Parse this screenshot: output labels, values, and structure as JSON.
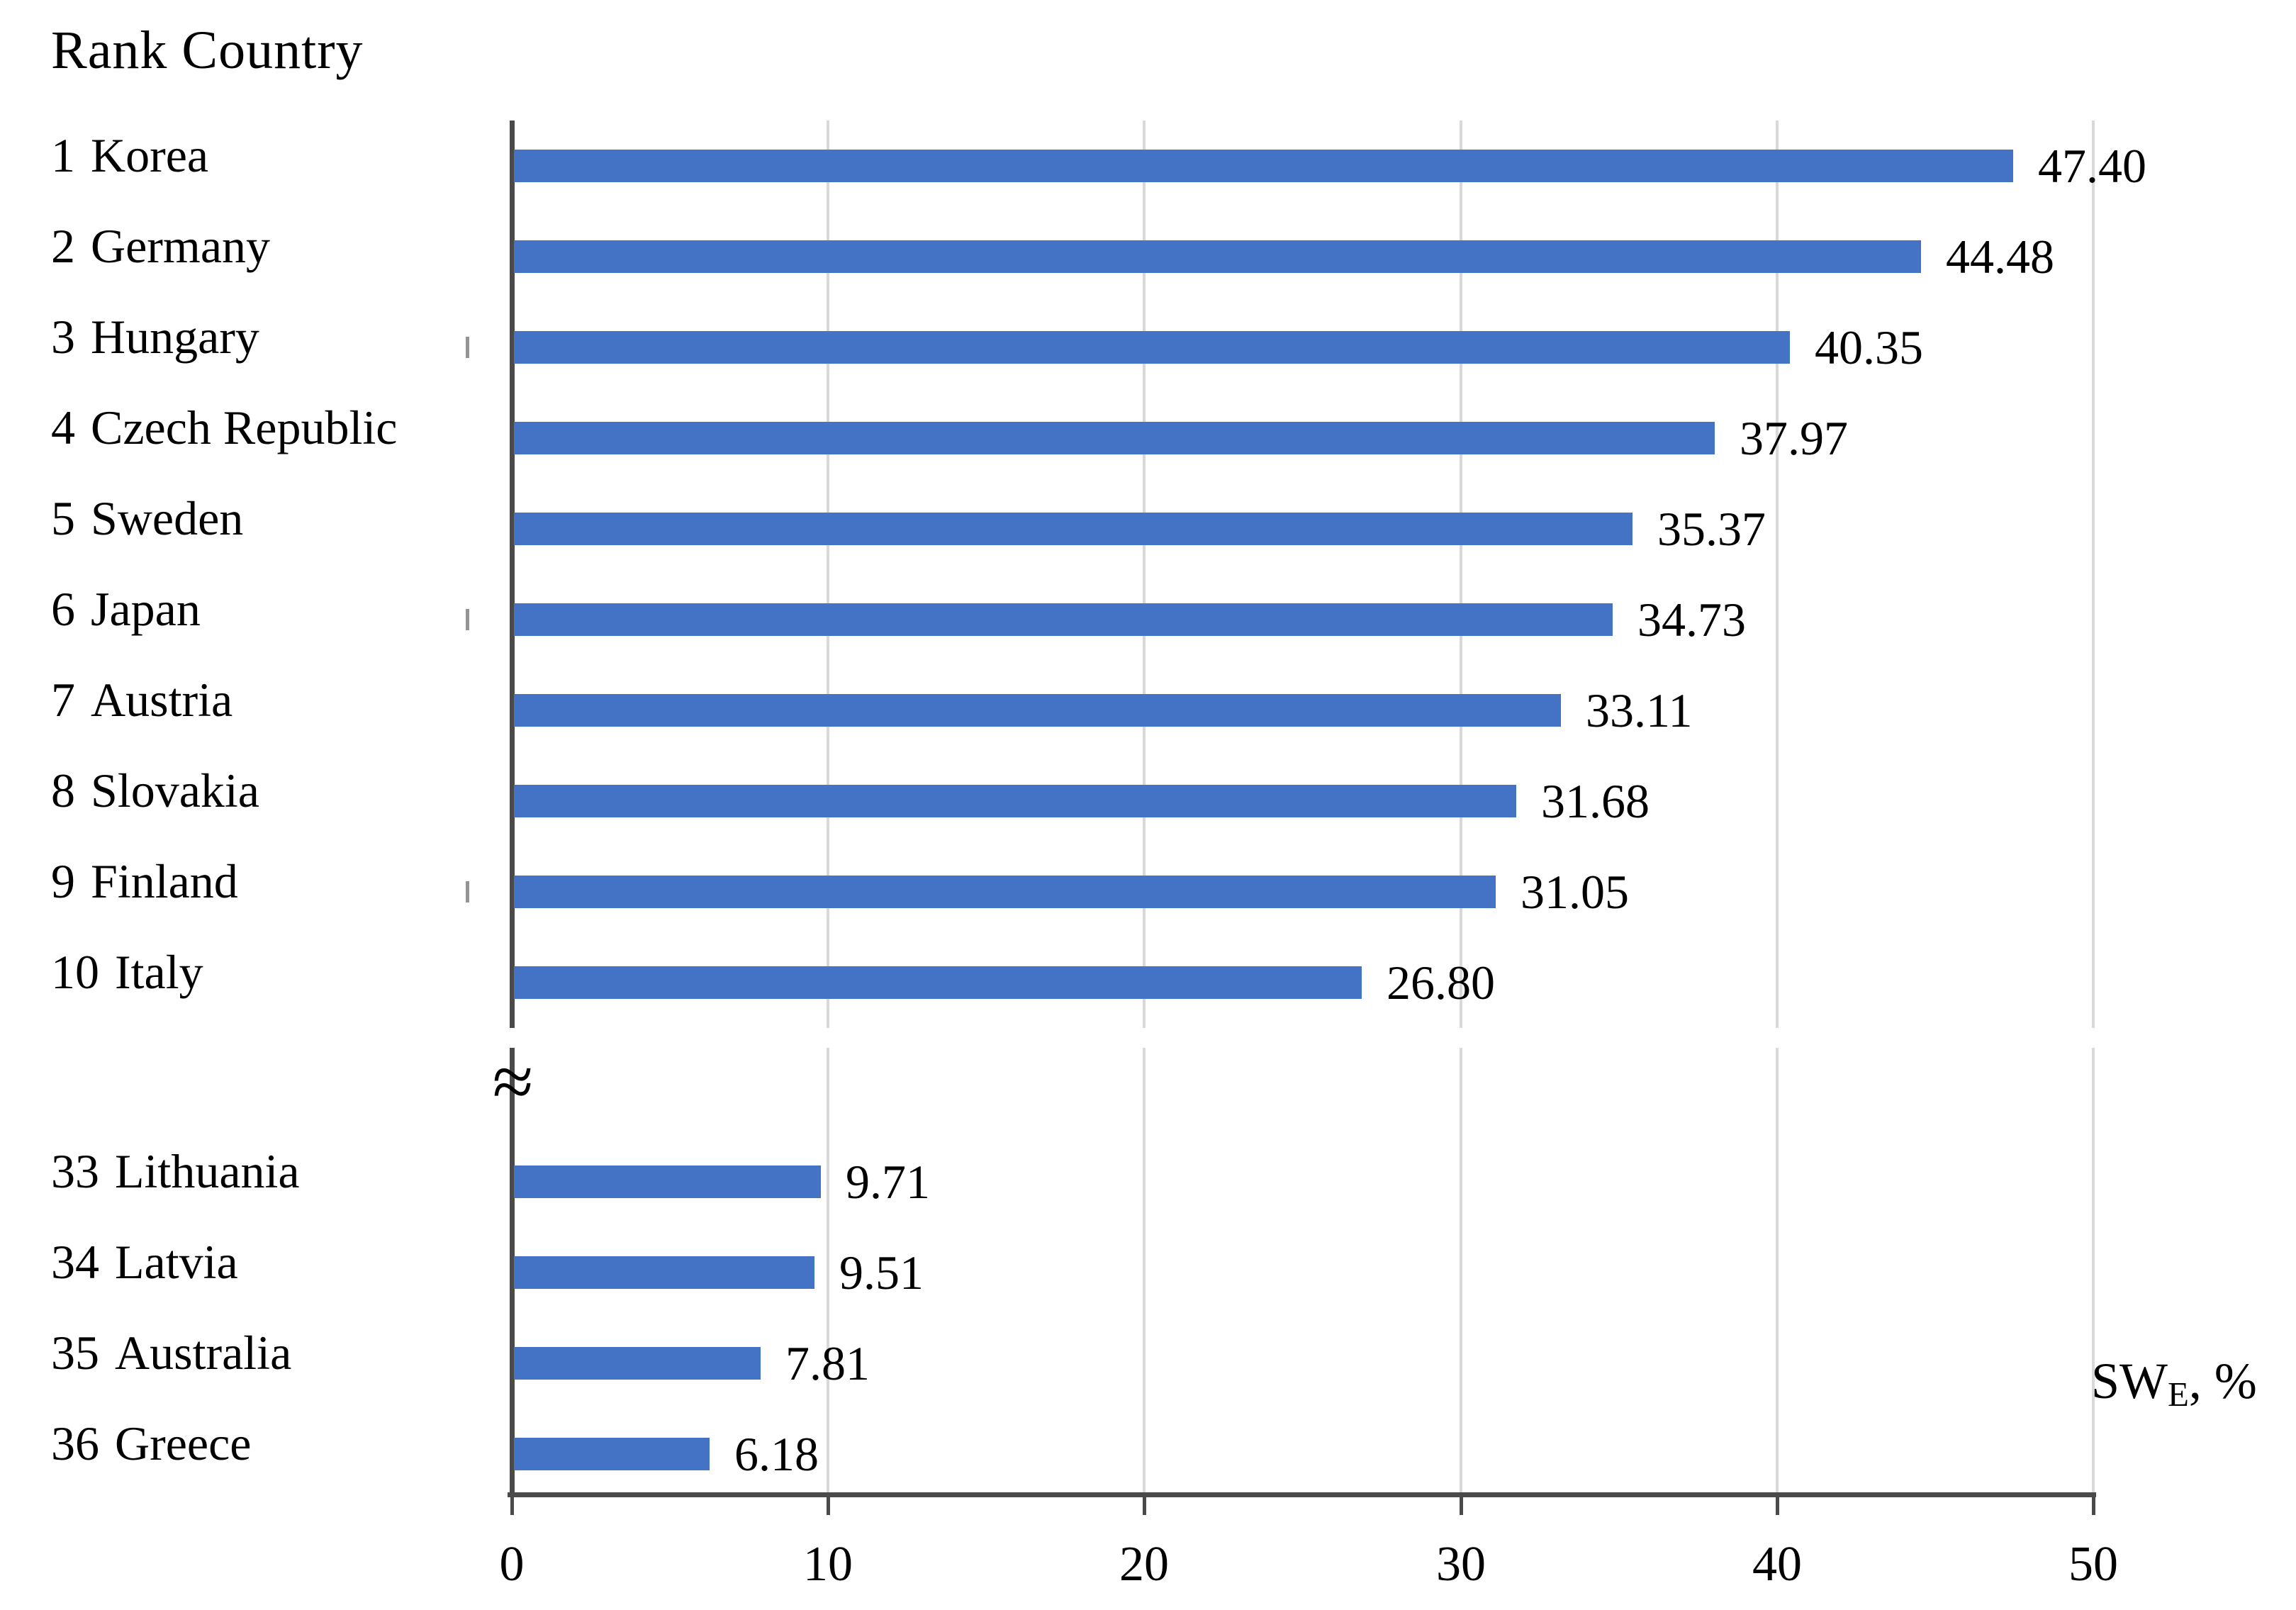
{
  "header": {
    "title": "Rank Country"
  },
  "axis": {
    "tick_labels": [
      "0",
      "10",
      "20",
      "30",
      "40",
      "50"
    ],
    "label_main": "SW",
    "label_sub": "E",
    "label_suffix": ", %",
    "break_symbol": "≈"
  },
  "colors": {
    "bar": "#4472c4",
    "axis_line": "#4a4a4a",
    "gridline": "#d9d9d9",
    "category_tick": "#949494",
    "text": "#000000"
  },
  "chart_data": {
    "type": "bar",
    "orientation": "horizontal",
    "title": "Rank Country",
    "xlabel": "SW_E, %",
    "xlim": [
      0,
      50
    ],
    "x_ticks": [
      0,
      10,
      20,
      30,
      40,
      50
    ],
    "grid": true,
    "axis_break_between_panels": true,
    "value_label_decimals": 2,
    "top_panel": [
      {
        "rank": "1",
        "country": "Korea",
        "value": 47.4
      },
      {
        "rank": "2",
        "country": "Germany",
        "value": 44.48
      },
      {
        "rank": "3",
        "country": "Hungary",
        "value": 40.35
      },
      {
        "rank": "4",
        "country": "Czech Republic",
        "value": 37.97
      },
      {
        "rank": "5",
        "country": "Sweden",
        "value": 35.37
      },
      {
        "rank": "6",
        "country": "Japan",
        "value": 34.73
      },
      {
        "rank": "7",
        "country": "Austria",
        "value": 33.11
      },
      {
        "rank": "8",
        "country": "Slovakia",
        "value": 31.68
      },
      {
        "rank": "9",
        "country": "Finland",
        "value": 31.05
      },
      {
        "rank": "10",
        "country": "Italy",
        "value": 26.8
      }
    ],
    "bottom_panel": [
      {
        "rank": "33",
        "country": "Lithuania",
        "value": 9.71
      },
      {
        "rank": "34",
        "country": "Latvia",
        "value": 9.51
      },
      {
        "rank": "35",
        "country": "Australia",
        "value": 7.81
      },
      {
        "rank": "36",
        "country": "Greece",
        "value": 6.18
      }
    ],
    "category_tick_rows_top_panel": [
      3,
      6,
      9
    ]
  }
}
